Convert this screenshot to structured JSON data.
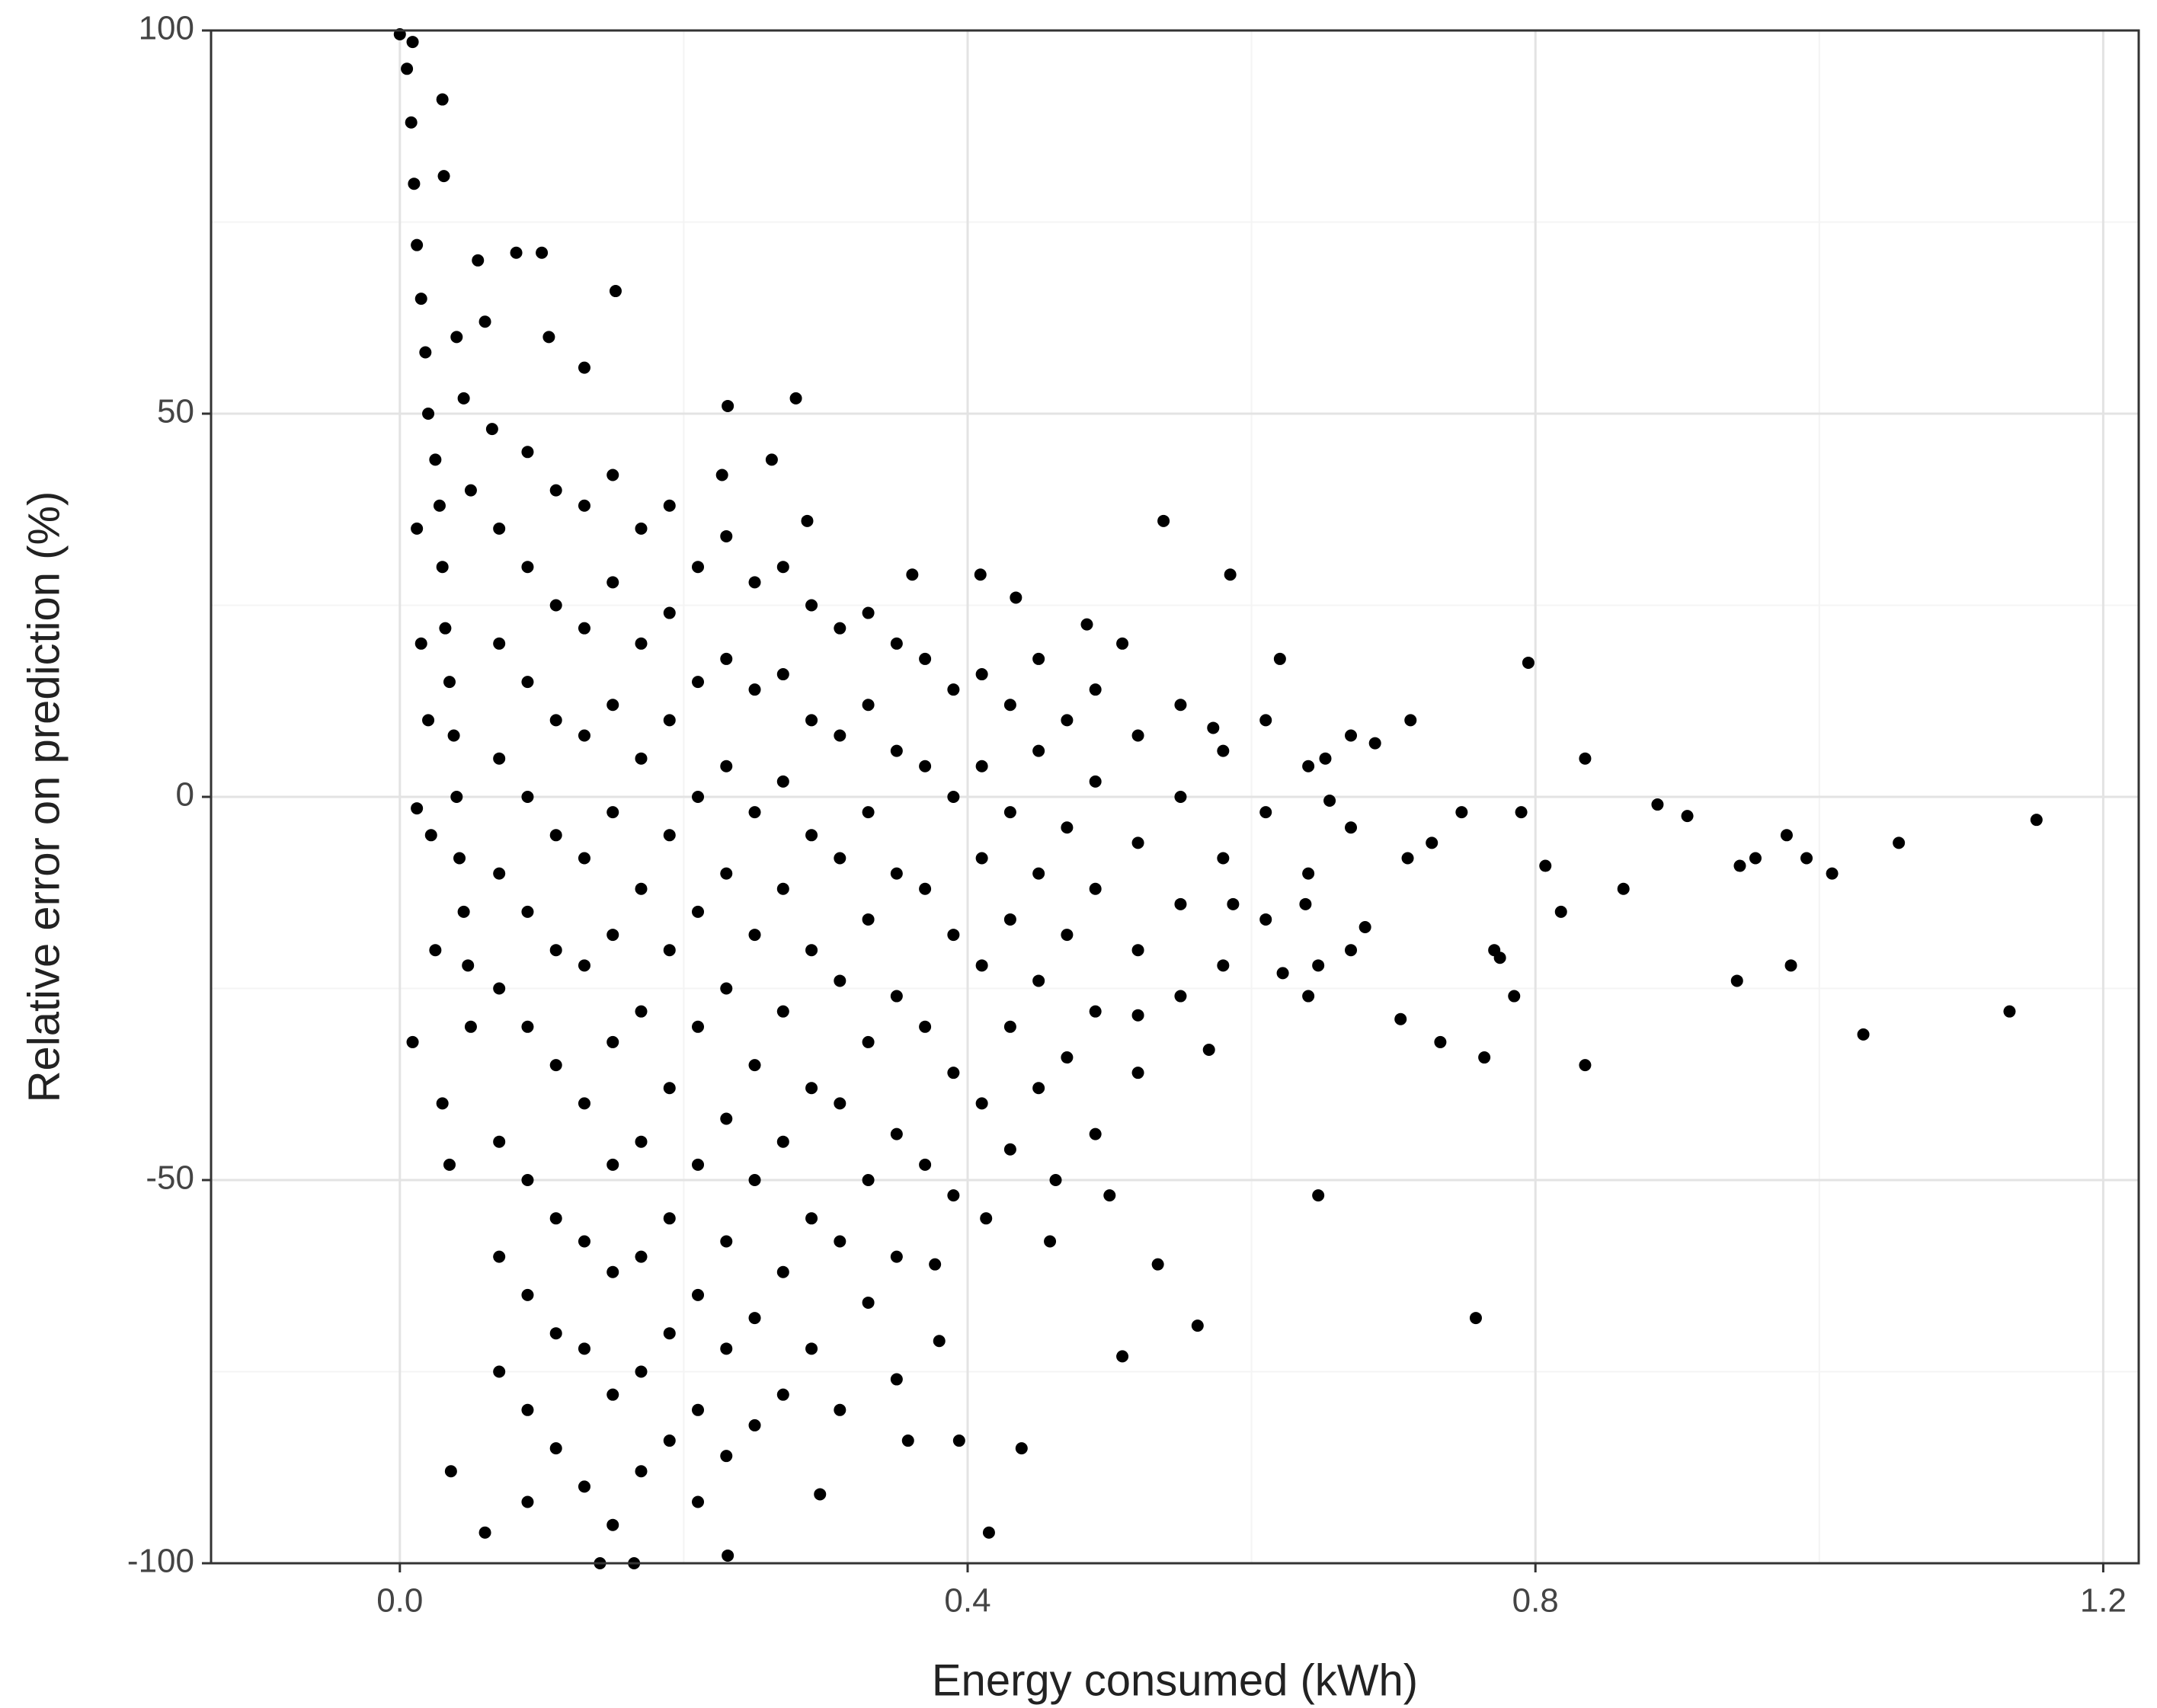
{
  "chart_data": {
    "type": "scatter",
    "x_label": "Energy consumed (kWh)",
    "y_label": "Relative error on prediction (%)",
    "xlim": [
      -0.133,
      1.225
    ],
    "ylim": [
      -100,
      100
    ],
    "xticks": [
      {
        "value": 0,
        "label": "0.0"
      },
      {
        "value": 0.4,
        "label": "0.4"
      },
      {
        "value": 0.8,
        "label": "0.8"
      },
      {
        "value": 1.2,
        "label": "1.2"
      }
    ],
    "yticks": [
      -100,
      -50,
      0,
      50,
      100
    ],
    "x_minor_ticks": [
      0.2,
      0.6,
      1.0
    ],
    "y_minor_ticks": [
      -75,
      -25,
      25,
      75
    ],
    "grid": true,
    "color": "#000000",
    "x": [
      0.03,
      0.152,
      0.279,
      0.231,
      0.538,
      0.585,
      0.795,
      1.153,
      1.056,
      1.031,
      1.134,
      0.942,
      0.98,
      0.977,
      0.886,
      0.758,
      0.562,
      0.509,
      0.415,
      0.438,
      0.394,
      0.231,
      0.647,
      0.5,
      0.534,
      0.835,
      0.764,
      0.818,
      0.862,
      0.835,
      0.712,
      0.62,
      0.409,
      0.434,
      0.361,
      0.287,
      0.262,
      0.227,
      0.13,
      0.105,
      0.1,
      0.082,
      0.031,
      0.009,
      0.0,
      0.012,
      0.009,
      0.036,
      0.06,
      0.141,
      0.165,
      0.296,
      0.358,
      0.38,
      0.377,
      0.462,
      0.458,
      0.413,
      0.622,
      0.638,
      0.705,
      0.733,
      0.785,
      0.955,
      0.944,
      1.009,
      0.991,
      0.907,
      0.687,
      0.652,
      0.573,
      0.509,
      0.484,
      0.587,
      0.647,
      0.52,
      0.57,
      0.748,
      0.727,
      0.79,
      0.807,
      0.771,
      0.775,
      0.68,
      0.71,
      0.655,
      0.005,
      0.008,
      0.01,
      0.012,
      0.015,
      0.018,
      0.02,
      0.025,
      0.028,
      0.03,
      0.032,
      0.035,
      0.038,
      0.04,
      0.042,
      0.045,
      0.048,
      0.05,
      0.012,
      0.015,
      0.02,
      0.022,
      0.025,
      0.03,
      0.035,
      0.04,
      0.045,
      0.05,
      0.055,
      0.06,
      0.065,
      0.07,
      0.07,
      0.07,
      0.07,
      0.07,
      0.07,
      0.07,
      0.07,
      0.09,
      0.09,
      0.09,
      0.09,
      0.09,
      0.09,
      0.09,
      0.09,
      0.09,
      0.09,
      0.11,
      0.11,
      0.11,
      0.11,
      0.11,
      0.11,
      0.11,
      0.11,
      0.11,
      0.13,
      0.13,
      0.13,
      0.13,
      0.13,
      0.13,
      0.13,
      0.13,
      0.13,
      0.15,
      0.15,
      0.15,
      0.15,
      0.15,
      0.15,
      0.15,
      0.15,
      0.15,
      0.15,
      0.17,
      0.17,
      0.17,
      0.17,
      0.17,
      0.17,
      0.17,
      0.17,
      0.17,
      0.19,
      0.19,
      0.19,
      0.19,
      0.19,
      0.19,
      0.19,
      0.19,
      0.19,
      0.21,
      0.21,
      0.21,
      0.21,
      0.21,
      0.21,
      0.21,
      0.21,
      0.21,
      0.23,
      0.23,
      0.23,
      0.23,
      0.23,
      0.23,
      0.23,
      0.23,
      0.23,
      0.25,
      0.25,
      0.25,
      0.25,
      0.25,
      0.25,
      0.25,
      0.25,
      0.27,
      0.27,
      0.27,
      0.27,
      0.27,
      0.27,
      0.27,
      0.27,
      0.29,
      0.29,
      0.29,
      0.29,
      0.29,
      0.29,
      0.29,
      0.31,
      0.31,
      0.31,
      0.31,
      0.31,
      0.31,
      0.31,
      0.33,
      0.33,
      0.33,
      0.33,
      0.33,
      0.33,
      0.33,
      0.35,
      0.35,
      0.35,
      0.35,
      0.35,
      0.35,
      0.35,
      0.37,
      0.37,
      0.37,
      0.37,
      0.37,
      0.39,
      0.39,
      0.39,
      0.39,
      0.39,
      0.41,
      0.41,
      0.41,
      0.41,
      0.41,
      0.43,
      0.43,
      0.43,
      0.43,
      0.43,
      0.45,
      0.45,
      0.45,
      0.45,
      0.45,
      0.47,
      0.47,
      0.47,
      0.47,
      0.49,
      0.49,
      0.49,
      0.49,
      0.49,
      0.52,
      0.52,
      0.52,
      0.52,
      0.55,
      0.55,
      0.55,
      0.55,
      0.58,
      0.58,
      0.58,
      0.61,
      0.61,
      0.61,
      0.64,
      0.64,
      0.64,
      0.67,
      0.67,
      0.67
    ],
    "values": [
      91,
      66,
      52,
      51,
      36,
      29,
      17.5,
      -3,
      -6,
      -31,
      -28,
      -24,
      -22,
      -5,
      -1,
      -68,
      -69,
      -73,
      -96,
      -85,
      -84,
      -99,
      -52,
      -52,
      -61,
      -35,
      -34,
      -15,
      -12,
      5,
      10,
      18,
      29,
      26,
      29,
      36,
      44,
      42,
      56,
      60,
      71,
      71,
      81,
      98.5,
      99.5,
      -1.5,
      -32,
      -88,
      -96,
      -100,
      -100,
      -91,
      -84,
      -71,
      -61,
      -50,
      -58,
      -55,
      -23,
      -14,
      -29,
      -32,
      -26,
      -8,
      -9,
      -10,
      -8,
      -2.5,
      7,
      5,
      9,
      20,
      22.5,
      -14,
      -22,
      -28.5,
      -33,
      -2,
      -6,
      -2,
      -9,
      -20,
      -21,
      -17,
      -8,
      -0.5,
      95,
      88,
      80,
      72,
      65,
      58,
      50,
      44,
      38,
      30,
      22,
      15,
      8,
      0,
      -8,
      -15,
      -22,
      -30,
      35,
      20,
      10,
      -5,
      -20,
      -40,
      -48,
      60,
      52,
      40,
      70,
      62,
      48,
      35,
      20,
      5,
      -10,
      -25,
      -45,
      -60,
      -75,
      45,
      30,
      15,
      0,
      -15,
      -30,
      -50,
      -65,
      -80,
      -92,
      40,
      25,
      10,
      -5,
      -20,
      -35,
      -55,
      -70,
      -85,
      38,
      22,
      8,
      -8,
      -22,
      -40,
      -58,
      -72,
      -90,
      42,
      28,
      12,
      -2,
      -18,
      -32,
      -48,
      -62,
      -78,
      -95,
      35,
      20,
      5,
      -12,
      -28,
      -45,
      -60,
      -75,
      -88,
      38,
      24,
      10,
      -5,
      -20,
      -38,
      -55,
      -70,
      -84,
      30,
      15,
      0,
      -15,
      -30,
      -48,
      -65,
      -80,
      -92,
      34,
      18,
      4,
      -10,
      -25,
      -42,
      -58,
      -72,
      -86,
      28,
      14,
      -2,
      -18,
      -35,
      -50,
      -68,
      -82,
      30,
      16,
      2,
      -12,
      -28,
      -45,
      -62,
      -78,
      25,
      10,
      -5,
      -20,
      -38,
      -55,
      -72,
      22,
      8,
      -8,
      -24,
      -40,
      -58,
      -80,
      24,
      12,
      -2,
      -16,
      -32,
      -50,
      -66,
      20,
      6,
      -10,
      -26,
      -44,
      -60,
      -76,
      18,
      4,
      -12,
      -30,
      -48,
      14,
      0,
      -18,
      -36,
      -52,
      16,
      4,
      -8,
      -22,
      -40,
      12,
      -2,
      -16,
      -30,
      -46,
      18,
      6,
      -10,
      -24,
      -38,
      10,
      -4,
      -18,
      -34,
      14,
      2,
      -12,
      -28,
      -44,
      8,
      -6,
      -20,
      -36,
      12,
      0,
      -14,
      -26,
      6,
      -8,
      -22,
      10,
      -2,
      -16,
      4,
      -10,
      -26,
      8,
      -4,
      -20
    ]
  }
}
